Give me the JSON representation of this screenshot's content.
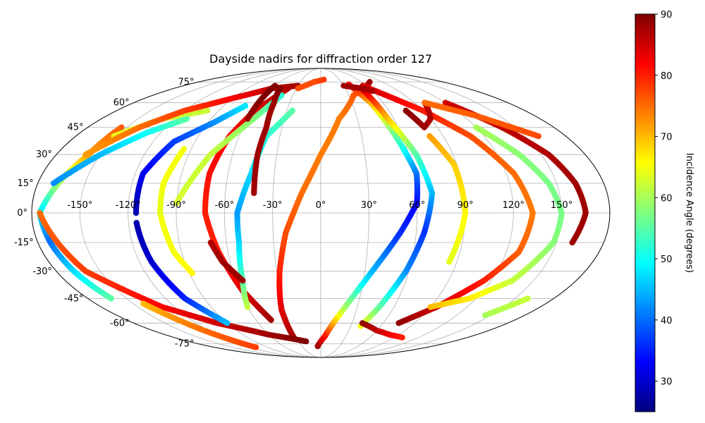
{
  "chart_data": {
    "type": "scatter",
    "projection": "mollweide",
    "title": "Dayside nadirs for diffraction order 127",
    "grid": true,
    "x_tick_labels": [
      "-150°",
      "-120°",
      "-90°",
      "-60°",
      "-30°",
      "0°",
      "30°",
      "60°",
      "90°",
      "120°",
      "150°"
    ],
    "x_ticks": [
      -150,
      -120,
      -90,
      -60,
      -30,
      0,
      30,
      60,
      90,
      120,
      150
    ],
    "y_tick_labels": [
      "-75°",
      "-60°",
      "-45°",
      "-30°",
      "-15°",
      "0°",
      "15°",
      "30°",
      "45°",
      "60°",
      "75°"
    ],
    "y_ticks": [
      -75,
      -60,
      -45,
      -30,
      -15,
      0,
      15,
      30,
      45,
      60,
      75
    ],
    "colorbar": {
      "label": "Incidence Angle (degrees)",
      "range": [
        25,
        90
      ],
      "ticks": [
        30,
        40,
        50,
        60,
        70,
        80,
        90
      ],
      "tick_labels": [
        "30",
        "40",
        "50",
        "60",
        "70",
        "80",
        "90"
      ],
      "colormap": "jet"
    },
    "tracks": [
      {
        "pts": [
          [
            -5,
            -77,
            89
          ],
          [
            5,
            -69,
            82
          ],
          [
            20,
            -50,
            60
          ],
          [
            35,
            -30,
            45
          ],
          [
            50,
            -10,
            36
          ],
          [
            60,
            5,
            33
          ],
          [
            62,
            20,
            40
          ],
          [
            55,
            40,
            55
          ],
          [
            48,
            60,
            70
          ],
          [
            38,
            73,
            82
          ]
        ]
      },
      {
        "pts": [
          [
            -33,
            -70,
            88
          ],
          [
            -33,
            -52,
            84
          ],
          [
            -28,
            -30,
            80
          ],
          [
            -22,
            -10,
            77
          ],
          [
            -12,
            10,
            75
          ],
          [
            0,
            30,
            74
          ],
          [
            15,
            50,
            74
          ],
          [
            35,
            65,
            76
          ],
          [
            60,
            72,
            80
          ],
          [
            72,
            75,
            88
          ]
        ]
      },
      {
        "pts": [
          [
            -46,
            -58,
            88
          ],
          [
            -58,
            -40,
            84
          ],
          [
            -66,
            -20,
            80
          ],
          [
            -72,
            0,
            80
          ],
          [
            -72,
            20,
            81
          ],
          [
            -67,
            40,
            82
          ],
          [
            -58,
            55,
            84
          ],
          [
            -40,
            70,
            87
          ]
        ]
      },
      {
        "pts": [
          [
            -154,
            45,
            76
          ],
          [
            -158,
            30,
            72
          ],
          [
            -167,
            15,
            60
          ],
          [
            -175,
            0,
            48
          ],
          [
            -172,
            -15,
            40
          ],
          [
            -168,
            -30,
            47
          ],
          [
            -162,
            -45,
            55
          ]
        ]
      },
      {
        "pts": [
          [
            -175,
            0,
            75
          ],
          [
            -160,
            -30,
            78
          ],
          [
            -130,
            -50,
            82
          ],
          [
            -100,
            -60,
            85
          ],
          [
            -60,
            -68,
            88
          ],
          [
            -20,
            -73,
            90
          ]
        ]
      },
      {
        "pts": [
          [
            -152,
            40,
            64
          ],
          [
            -130,
            50,
            63
          ],
          [
            -100,
            55,
            62
          ]
        ]
      },
      {
        "pts": [
          [
            -170,
            15,
            42
          ],
          [
            -150,
            30,
            45
          ],
          [
            -130,
            42,
            50
          ],
          [
            -110,
            50,
            55
          ]
        ]
      },
      {
        "pts": [
          [
            -160,
            30,
            72
          ],
          [
            -140,
            45,
            75
          ],
          [
            -120,
            55,
            78
          ],
          [
            -90,
            63,
            82
          ],
          [
            -60,
            70,
            86
          ],
          [
            -30,
            72,
            88
          ]
        ]
      },
      {
        "pts": [
          [
            -142,
            -48,
            70
          ],
          [
            -125,
            -65,
            75
          ],
          [
            -110,
            -78,
            78
          ]
        ]
      },
      {
        "pts": [
          [
            -115,
            -5,
            28
          ],
          [
            -112,
            -25,
            30
          ],
          [
            -105,
            -45,
            35
          ],
          [
            -90,
            -60,
            45
          ]
        ]
      },
      {
        "pts": [
          [
            -115,
            0,
            28
          ],
          [
            -115,
            20,
            32
          ],
          [
            -105,
            37,
            37
          ],
          [
            -85,
            48,
            42
          ],
          [
            -70,
            58,
            48
          ]
        ]
      },
      {
        "pts": [
          [
            -100,
            0,
            65
          ],
          [
            -95,
            -20,
            65
          ],
          [
            -88,
            -31,
            66
          ]
        ]
      },
      {
        "pts": [
          [
            -95,
            33,
            65
          ],
          [
            -100,
            15,
            65
          ],
          [
            -100,
            0,
            64
          ]
        ]
      },
      {
        "pts": [
          [
            -90,
            5,
            63
          ],
          [
            -75,
            30,
            62
          ],
          [
            -55,
            50,
            58
          ],
          [
            -42,
            65,
            52
          ]
        ]
      },
      {
        "pts": [
          [
            -60,
            -50,
            62
          ],
          [
            -55,
            -35,
            55
          ],
          [
            -52,
            -15,
            47
          ],
          [
            -52,
            0,
            43
          ],
          [
            -45,
            20,
            47
          ],
          [
            -40,
            40,
            52
          ],
          [
            -25,
            55,
            55
          ]
        ]
      },
      {
        "pts": [
          [
            -42,
            10,
            88
          ],
          [
            -43,
            30,
            88
          ],
          [
            -42,
            45,
            88
          ],
          [
            -45,
            60,
            88
          ],
          [
            -50,
            70,
            90
          ]
        ]
      },
      {
        "pts": [
          [
            -60,
            50,
            88
          ],
          [
            -60,
            62,
            90
          ],
          [
            -60,
            72,
            90
          ]
        ]
      },
      {
        "pts": [
          [
            -55,
            -35,
            88
          ],
          [
            -65,
            -25,
            88
          ],
          [
            -70,
            -15,
            87
          ]
        ]
      },
      {
        "pts": [
          [
            -28,
            70,
            77
          ],
          [
            -10,
            75,
            77
          ],
          [
            5,
            77,
            78
          ]
        ]
      },
      {
        "pts": [
          [
            50,
            68,
            85
          ],
          [
            55,
            50,
            70
          ],
          [
            65,
            30,
            55
          ],
          [
            70,
            10,
            45
          ],
          [
            65,
            -10,
            36
          ],
          [
            58,
            -30,
            42
          ],
          [
            48,
            -50,
            55
          ],
          [
            40,
            -62,
            65
          ]
        ]
      },
      {
        "pts": [
          [
            80,
            40,
            72
          ],
          [
            88,
            25,
            69
          ],
          [
            90,
            0,
            66
          ],
          [
            85,
            -25,
            64
          ]
        ]
      },
      {
        "pts": [
          [
            75,
            -60,
            89
          ],
          [
            95,
            -50,
            85
          ],
          [
            115,
            -35,
            80
          ],
          [
            128,
            -20,
            76
          ],
          [
            132,
            0,
            74
          ],
          [
            125,
            20,
            75
          ],
          [
            110,
            40,
            77
          ],
          [
            90,
            55,
            80
          ],
          [
            70,
            65,
            83
          ],
          [
            55,
            72,
            85
          ]
        ]
      },
      {
        "pts": [
          [
            90,
            -50,
            70
          ],
          [
            115,
            -45,
            67
          ],
          [
            135,
            -35,
            62
          ],
          [
            148,
            -15,
            58
          ],
          [
            150,
            0,
            57
          ],
          [
            145,
            15,
            57
          ],
          [
            135,
            30,
            58
          ],
          [
            120,
            45,
            60
          ]
        ]
      },
      {
        "pts": [
          [
            160,
            -15,
            88
          ],
          [
            165,
            0,
            88
          ],
          [
            162,
            15,
            88
          ],
          [
            155,
            30,
            87
          ],
          [
            140,
            45,
            86
          ],
          [
            120,
            60,
            85
          ]
        ]
      },
      {
        "pts": [
          [
            100,
            60,
            85
          ],
          [
            90,
            50,
            87
          ],
          [
            80,
            45,
            88
          ],
          [
            75,
            55,
            89
          ]
        ]
      },
      {
        "pts": [
          [
            145,
            -55,
            60
          ],
          [
            160,
            -45,
            62
          ]
        ]
      },
      {
        "pts": [
          [
            40,
            -60,
            89
          ],
          [
            60,
            -65,
            86
          ],
          [
            80,
            -68,
            83
          ],
          [
            100,
            -70,
            80
          ]
        ]
      },
      {
        "pts": [
          [
            100,
            60,
            75
          ],
          [
            130,
            52,
            76
          ],
          [
            160,
            40,
            77
          ]
        ]
      },
      {
        "pts": [
          [
            30,
            72,
            88
          ],
          [
            50,
            70,
            88
          ],
          [
            60,
            68,
            87
          ]
        ]
      }
    ]
  }
}
